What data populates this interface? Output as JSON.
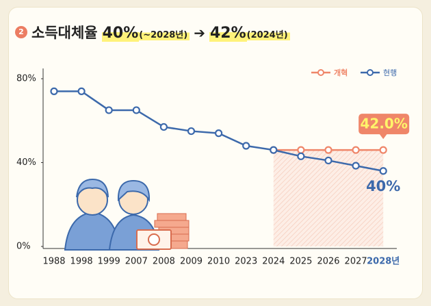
{
  "title_parts": {
    "badge": "2",
    "label": "소득대체율",
    "from_value": "40%",
    "from_note": "(~2028년)",
    "arrow": "➔",
    "to_value": "42%",
    "to_note": "(2024년)"
  },
  "chart_data": {
    "type": "line",
    "categories": [
      "1988",
      "1998",
      "1999",
      "2007",
      "2008",
      "2009",
      "2010",
      "2023",
      "2024",
      "2025",
      "2026",
      "2027",
      "2028년"
    ],
    "series": [
      {
        "name": "개혁",
        "color": "#ef8669",
        "values": [
          null,
          null,
          null,
          null,
          null,
          null,
          null,
          null,
          46,
          46,
          46,
          46,
          46
        ]
      },
      {
        "name": "현행",
        "color": "#3c69ab",
        "values": [
          74,
          74,
          65,
          65,
          57,
          55,
          54,
          48,
          46,
          43,
          41,
          38.5,
          36
        ]
      }
    ],
    "annotations": [
      "42.0%",
      "40%"
    ],
    "ylim": [
      0,
      80
    ],
    "yticks": [
      {
        "value": 0,
        "label": "0%"
      },
      {
        "value": 40,
        "label": "40%"
      },
      {
        "value": 80,
        "label": "80%"
      }
    ],
    "legend": "top-right",
    "grid": false
  }
}
